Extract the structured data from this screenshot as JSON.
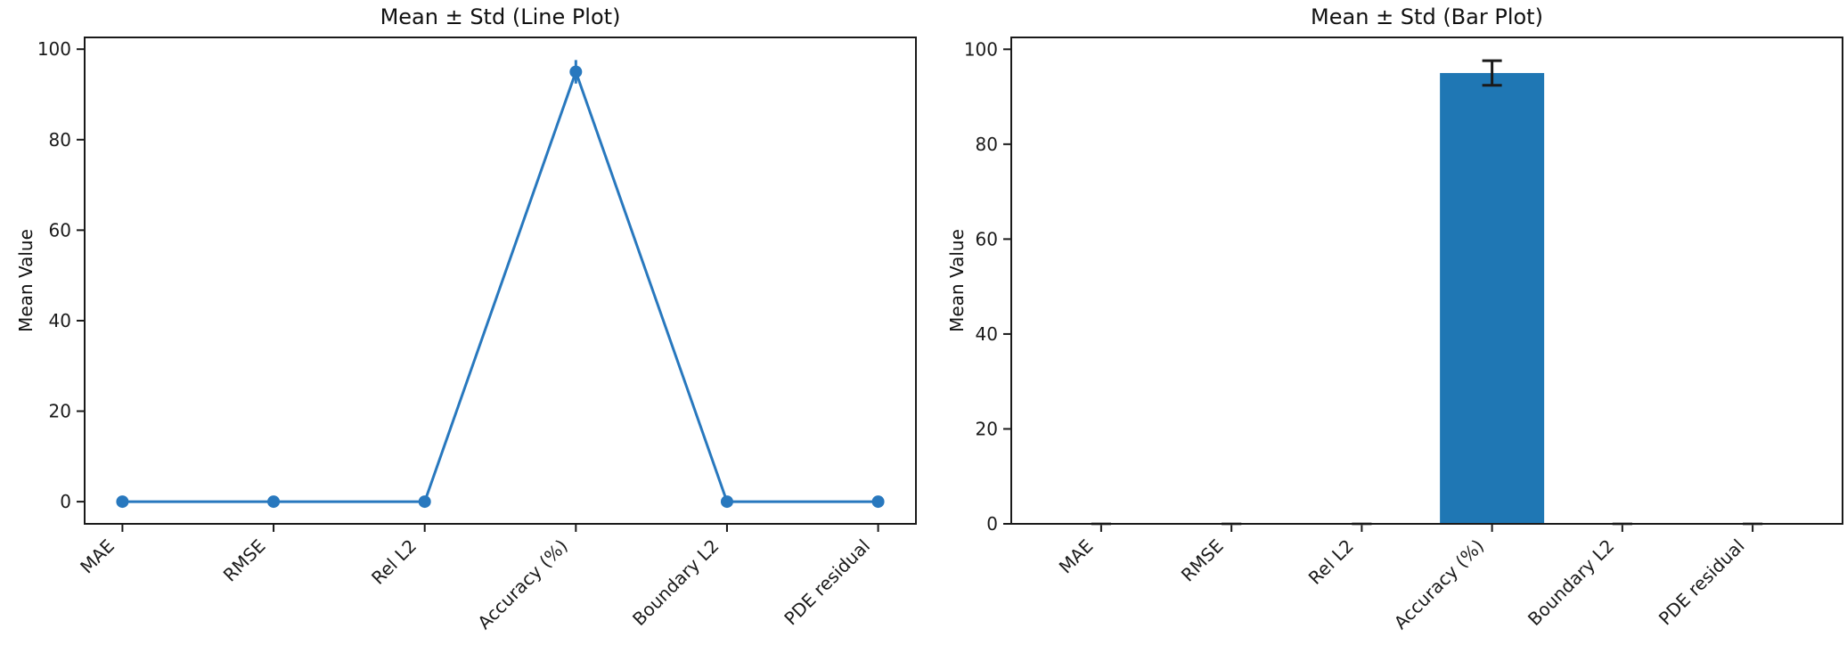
{
  "figure": {
    "background": "#ffffff",
    "axis_color": "#1a1a1a"
  },
  "chart_data": [
    {
      "type": "line",
      "title": "Mean ± Std (Line Plot)",
      "xlabel": "",
      "ylabel": "Mean Value",
      "categories": [
        "MAE",
        "RMSE",
        "Rel L2",
        "Accuracy (%)",
        "Boundary L2",
        "PDE residual"
      ],
      "series": [
        {
          "values": [
            0,
            0,
            0,
            95,
            0,
            0
          ],
          "errors": [
            0,
            0,
            0,
            2.6,
            0,
            0
          ]
        }
      ],
      "yticks": [
        0,
        20,
        40,
        60,
        80,
        100
      ],
      "ylim": [
        -4.9,
        102.6
      ],
      "grid": false,
      "legend": false,
      "x_tick_rotation": 45,
      "line_color": "#2878be",
      "marker_color": "#2878be",
      "error_color": "#2878be"
    },
    {
      "type": "bar",
      "title": "Mean ± Std (Bar Plot)",
      "xlabel": "",
      "ylabel": "Mean Value",
      "categories": [
        "MAE",
        "RMSE",
        "Rel L2",
        "Accuracy (%)",
        "Boundary L2",
        "PDE residual"
      ],
      "series": [
        {
          "values": [
            0,
            0,
            0,
            95,
            0,
            0
          ],
          "errors": [
            0,
            0,
            0,
            2.6,
            0,
            0
          ]
        }
      ],
      "yticks": [
        0,
        20,
        40,
        60,
        80,
        100
      ],
      "ylim": [
        0,
        102.5
      ],
      "grid": false,
      "legend": false,
      "x_tick_rotation": 45,
      "bar_width": 0.8,
      "bar_color": "#1f77b4",
      "error_color": "#1a1a1a",
      "zero_cap_color": "#666666"
    }
  ]
}
